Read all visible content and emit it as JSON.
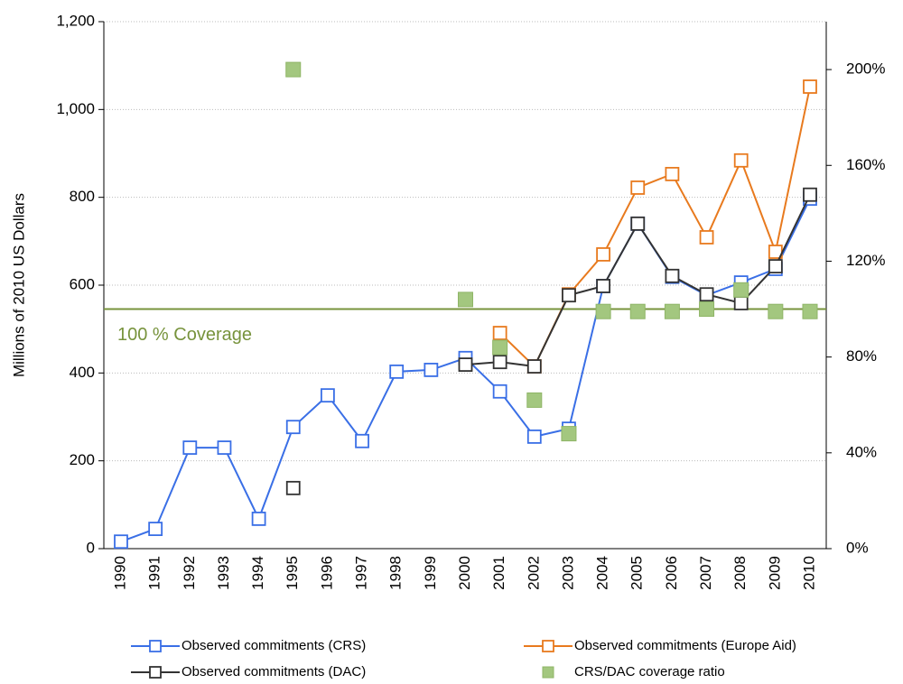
{
  "chart_data": {
    "type": "line",
    "y_label": "Millions of 2010 US Dollars",
    "categories": [
      "1990",
      "1991",
      "1992",
      "1993",
      "1994",
      "1995",
      "1996",
      "1997",
      "1998",
      "1999",
      "2000",
      "2001",
      "2002",
      "2003",
      "2004",
      "2005",
      "2006",
      "2007",
      "2008",
      "2009",
      "2010"
    ],
    "ylim": [
      0,
      1200
    ],
    "yticks": [
      0,
      200,
      400,
      600,
      800,
      {
        "value": 1000,
        "label": "1,000"
      },
      {
        "value": 1200,
        "label": "1,200"
      }
    ],
    "y2lim": [
      0,
      220
    ],
    "y2ticks": [
      {
        "value": 0,
        "label": "0%"
      },
      {
        "value": 40,
        "label": "40%"
      },
      {
        "value": 80,
        "label": "80%"
      },
      {
        "value": 120,
        "label": "120%"
      },
      {
        "value": 160,
        "label": "160%"
      },
      {
        "value": 200,
        "label": "200%"
      }
    ],
    "grid": true,
    "reference_line": {
      "value": 100,
      "axis": "y2",
      "label": "100 % Coverage",
      "color": "#77933c"
    },
    "series": [
      {
        "name": "Observed commitments (CRS)",
        "color": "#3a6fe6",
        "mode": "lines+markers",
        "values": [
          16,
          45,
          230,
          230,
          68,
          277,
          349,
          245,
          403,
          407,
          434,
          358,
          255,
          273,
          598,
          740,
          619,
          577,
          606,
          637,
          797
        ]
      },
      {
        "name": "Observed commitments (Europe Aid)",
        "color": "#e87a1e",
        "mode": "lines+markers",
        "values": [
          null,
          null,
          null,
          null,
          null,
          null,
          null,
          null,
          null,
          null,
          null,
          491,
          415,
          579,
          670,
          822,
          853,
          709,
          884,
          676,
          1052
        ]
      },
      {
        "name": "Observed commitments (DAC)",
        "color": "#333333",
        "mode": "lines+markers",
        "values": [
          null,
          null,
          null,
          null,
          null,
          138,
          null,
          null,
          null,
          null,
          419,
          425,
          415,
          577,
          598,
          740,
          621,
          579,
          559,
          643,
          806
        ]
      },
      {
        "name": "CRS/DAC coverage ratio",
        "color": "#a3c77f",
        "mode": "markers",
        "axis": "y2",
        "values": [
          null,
          null,
          null,
          null,
          null,
          200,
          null,
          null,
          null,
          null,
          104,
          84,
          62,
          48,
          99,
          99,
          99,
          100,
          108,
          99,
          99
        ]
      }
    ]
  }
}
